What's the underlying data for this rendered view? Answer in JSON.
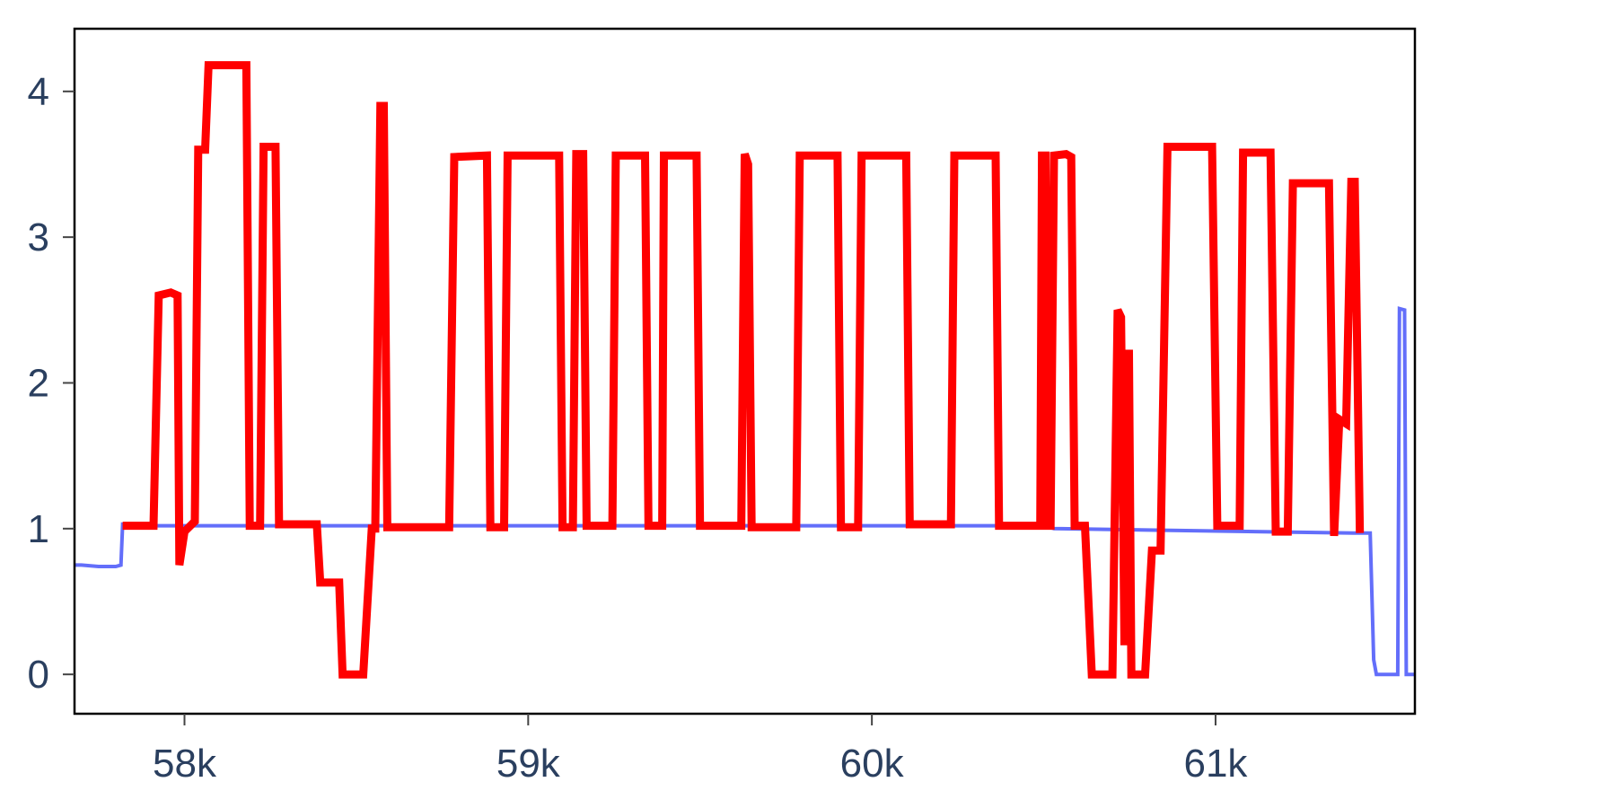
{
  "chart_data": {
    "type": "line",
    "title": "",
    "xlabel": "",
    "ylabel": "",
    "xlim": [
      57680,
      61580
    ],
    "ylim": [
      -0.27,
      4.43
    ],
    "x_ticks": [
      58000,
      59000,
      60000,
      61000
    ],
    "x_tick_labels": [
      "58k",
      "59k",
      "60k",
      "61k"
    ],
    "y_ticks": [
      0,
      1,
      2,
      3,
      4
    ],
    "y_tick_labels": [
      "0",
      "1",
      "2",
      "3",
      "4"
    ],
    "grid": false,
    "legend": "none",
    "series": [
      {
        "color": "#636efa",
        "points": [
          [
            57680,
            0.75
          ],
          [
            57700,
            0.75
          ],
          [
            57750,
            0.74
          ],
          [
            57800,
            0.74
          ],
          [
            57815,
            0.75
          ],
          [
            57820,
            1.03
          ],
          [
            57840,
            1.02
          ],
          [
            60500,
            1.02
          ],
          [
            60530,
            1.0
          ],
          [
            61400,
            0.97
          ],
          [
            61435,
            0.97
          ],
          [
            61450,
            0.97
          ],
          [
            61460,
            0.1
          ],
          [
            61468,
            0.0
          ],
          [
            61500,
            0.0
          ],
          [
            61530,
            0.0
          ],
          [
            61535,
            2.51
          ],
          [
            61550,
            2.5
          ],
          [
            61555,
            0.0
          ],
          [
            61580,
            0.0
          ]
        ]
      },
      {
        "color": "#ff0000",
        "points": [
          [
            57820,
            1.02
          ],
          [
            57910,
            1.02
          ],
          [
            57925,
            2.6
          ],
          [
            57960,
            2.62
          ],
          [
            57980,
            2.6
          ],
          [
            57985,
            0.75
          ],
          [
            58000,
            0.98
          ],
          [
            58030,
            1.05
          ],
          [
            58040,
            3.6
          ],
          [
            58060,
            3.6
          ],
          [
            58070,
            4.18
          ],
          [
            58180,
            4.18
          ],
          [
            58190,
            1.02
          ],
          [
            58220,
            1.02
          ],
          [
            58230,
            3.62
          ],
          [
            58265,
            3.62
          ],
          [
            58275,
            1.03
          ],
          [
            58385,
            1.03
          ],
          [
            58395,
            0.63
          ],
          [
            58450,
            0.63
          ],
          [
            58460,
            0.0
          ],
          [
            58520,
            0.0
          ],
          [
            58545,
            1.0
          ],
          [
            58555,
            1.0
          ],
          [
            58570,
            3.9
          ],
          [
            58580,
            3.9
          ],
          [
            58590,
            1.01
          ],
          [
            58770,
            1.01
          ],
          [
            58785,
            3.55
          ],
          [
            58880,
            3.56
          ],
          [
            58890,
            1.01
          ],
          [
            58930,
            1.01
          ],
          [
            58940,
            3.56
          ],
          [
            59090,
            3.56
          ],
          [
            59100,
            1.01
          ],
          [
            59130,
            1.01
          ],
          [
            59140,
            3.57
          ],
          [
            59160,
            3.57
          ],
          [
            59170,
            1.02
          ],
          [
            59245,
            1.02
          ],
          [
            59255,
            3.56
          ],
          [
            59340,
            3.56
          ],
          [
            59350,
            1.02
          ],
          [
            59390,
            1.02
          ],
          [
            59395,
            3.56
          ],
          [
            59490,
            3.56
          ],
          [
            59500,
            1.02
          ],
          [
            59620,
            1.02
          ],
          [
            59630,
            3.57
          ],
          [
            59640,
            3.5
          ],
          [
            59650,
            1.01
          ],
          [
            59780,
            1.01
          ],
          [
            59790,
            3.56
          ],
          [
            59900,
            3.56
          ],
          [
            59910,
            1.01
          ],
          [
            59960,
            1.01
          ],
          [
            59970,
            3.56
          ],
          [
            60100,
            3.56
          ],
          [
            60110,
            1.03
          ],
          [
            60230,
            1.03
          ],
          [
            60240,
            3.56
          ],
          [
            60360,
            3.56
          ],
          [
            60370,
            1.02
          ],
          [
            60490,
            1.02
          ],
          [
            60495,
            3.56
          ],
          [
            60505,
            3.56
          ],
          [
            60510,
            1.02
          ],
          [
            60520,
            1.02
          ],
          [
            60530,
            3.56
          ],
          [
            60565,
            3.57
          ],
          [
            60580,
            3.55
          ],
          [
            60590,
            1.02
          ],
          [
            60620,
            1.02
          ],
          [
            60640,
            0.0
          ],
          [
            60700,
            0.0
          ],
          [
            60715,
            2.5
          ],
          [
            60725,
            2.45
          ],
          [
            60735,
            0.2
          ],
          [
            60740,
            2.2
          ],
          [
            60748,
            2.2
          ],
          [
            60755,
            0.0
          ],
          [
            60795,
            0.0
          ],
          [
            60815,
            0.85
          ],
          [
            60840,
            0.85
          ],
          [
            60860,
            3.62
          ],
          [
            60990,
            3.62
          ],
          [
            61005,
            1.02
          ],
          [
            61070,
            1.02
          ],
          [
            61080,
            3.58
          ],
          [
            61160,
            3.58
          ],
          [
            61175,
            0.98
          ],
          [
            61210,
            0.98
          ],
          [
            61225,
            3.37
          ],
          [
            61330,
            3.37
          ],
          [
            61345,
            0.95
          ],
          [
            61360,
            1.75
          ],
          [
            61380,
            1.72
          ],
          [
            61395,
            3.38
          ],
          [
            61405,
            3.38
          ],
          [
            61420,
            0.97
          ]
        ]
      }
    ]
  }
}
